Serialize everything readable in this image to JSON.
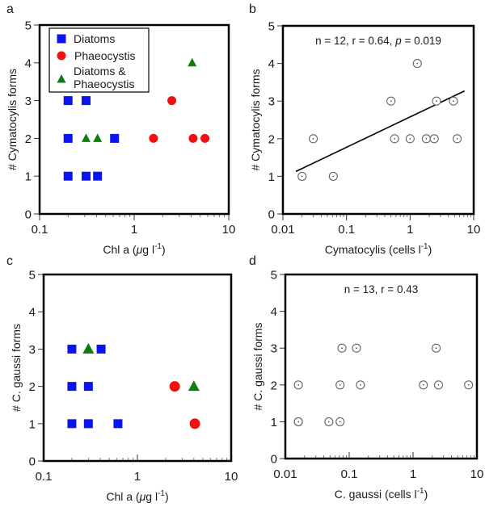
{
  "figure": {
    "colors": {
      "diatoms": "#0a14f0",
      "phaeocystis": "#f01010",
      "diatoms_phaeocystis": "#107c10",
      "open_marker": "#666666",
      "frame": "#000000"
    }
  },
  "chart_data": [
    {
      "id": "a",
      "panel_label": "a",
      "type": "scatter",
      "title": "",
      "xlabel": "Chl a (µg l⁻¹)",
      "xlabel_parts": {
        "pre": "Chl a (",
        "mu": "μ",
        "mid": "g l",
        "sup": "-1",
        "post": ")"
      },
      "ylabel": "# Cymatocylis forms",
      "xscale": "log",
      "xlim": [
        0.1,
        10
      ],
      "ylim": [
        0,
        5
      ],
      "xticks": [
        {
          "value": 0.1,
          "label": "0.1"
        },
        {
          "value": 1,
          "label": "1"
        },
        {
          "value": 10,
          "label": "10"
        }
      ],
      "yticks": [
        {
          "value": 0,
          "label": "0"
        },
        {
          "value": 1,
          "label": "1"
        },
        {
          "value": 2,
          "label": "2"
        },
        {
          "value": 3,
          "label": "3"
        },
        {
          "value": 4,
          "label": "4"
        },
        {
          "value": 5,
          "label": "5"
        }
      ],
      "legend": {
        "placement": "top-left",
        "entries": [
          {
            "series": "Diatoms",
            "marker": "square",
            "lines": [
              "Diatoms"
            ]
          },
          {
            "series": "Phaeocystis",
            "marker": "circle",
            "lines": [
              "Phaeocystis"
            ]
          },
          {
            "series": "Diatoms & Phaeocystis",
            "marker": "triangle",
            "lines": [
              "Diatoms &",
              "Phaeocystis"
            ]
          }
        ]
      },
      "series": [
        {
          "name": "Diatoms",
          "marker": "square",
          "color_key": "diatoms",
          "points": [
            [
              0.2,
              3
            ],
            [
              0.31,
              3
            ],
            [
              0.2,
              2
            ],
            [
              0.62,
              2
            ],
            [
              0.2,
              1
            ],
            [
              0.31,
              1
            ],
            [
              0.41,
              1
            ]
          ]
        },
        {
          "name": "Phaeocystis",
          "marker": "circle",
          "color_key": "phaeocystis",
          "points": [
            [
              2.5,
              3
            ],
            [
              1.6,
              2
            ],
            [
              4.2,
              2
            ],
            [
              5.6,
              2
            ]
          ]
        },
        {
          "name": "Diatoms & Phaeocystis",
          "marker": "triangle",
          "color_key": "diatoms_phaeocystis",
          "points": [
            [
              4.1,
              4
            ],
            [
              0.31,
              2
            ],
            [
              0.41,
              2
            ]
          ]
        }
      ]
    },
    {
      "id": "b",
      "panel_label": "b",
      "type": "scatter",
      "title": "",
      "annotation": {
        "pre": "n = 12, r = 0.64, ",
        "p_symbol": "p",
        "post": "= 0.019"
      },
      "xlabel": "Cymatocylis (cells l⁻¹)",
      "xlabel_parts": {
        "pre": "Cymatocylis (cells l",
        "sup": "-1",
        "post": ")"
      },
      "ylabel": "# Cymatocylis forms",
      "xscale": "log",
      "xlim": [
        0.01,
        10
      ],
      "ylim": [
        0,
        5
      ],
      "xticks": [
        {
          "value": 0.01,
          "label": "0.01"
        },
        {
          "value": 0.1,
          "label": "0.1"
        },
        {
          "value": 1,
          "label": "1"
        },
        {
          "value": 10,
          "label": "10"
        }
      ],
      "yticks": [
        {
          "value": 0,
          "label": "0"
        },
        {
          "value": 1,
          "label": "1"
        },
        {
          "value": 2,
          "label": "2"
        },
        {
          "value": 3,
          "label": "3"
        },
        {
          "value": 4,
          "label": "4"
        },
        {
          "value": 5,
          "label": "5"
        }
      ],
      "series": [
        {
          "name": "samples",
          "marker": "open-circle-dot",
          "color_key": "open_marker",
          "points": [
            [
              0.02,
              1
            ],
            [
              0.03,
              2
            ],
            [
              0.062,
              1
            ],
            [
              0.5,
              3
            ],
            [
              0.57,
              2
            ],
            [
              1.0,
              2
            ],
            [
              1.3,
              4
            ],
            [
              1.8,
              2
            ],
            [
              2.4,
              2
            ],
            [
              2.6,
              3
            ],
            [
              4.8,
              3
            ],
            [
              5.5,
              2
            ]
          ]
        }
      ],
      "fit_line": {
        "x": [
          0.016,
          7.2
        ],
        "y": [
          1.13,
          3.27
        ]
      }
    },
    {
      "id": "c",
      "panel_label": "c",
      "type": "scatter",
      "title": "",
      "xlabel": "Chl a (µg l⁻¹)",
      "xlabel_parts": {
        "pre": "Chl a (",
        "mu": "μ",
        "mid": "g l",
        "sup": "-1",
        "post": ")"
      },
      "ylabel": "# C. gaussi forms",
      "xscale": "log",
      "xlim": [
        0.1,
        10
      ],
      "ylim": [
        0,
        5
      ],
      "xticks": [
        {
          "value": 0.1,
          "label": "0.1"
        },
        {
          "value": 1,
          "label": "1"
        },
        {
          "value": 10,
          "label": "10"
        }
      ],
      "yticks": [
        {
          "value": 0,
          "label": "0"
        },
        {
          "value": 1,
          "label": "1"
        },
        {
          "value": 2,
          "label": "2"
        },
        {
          "value": 3,
          "label": "3"
        },
        {
          "value": 4,
          "label": "4"
        },
        {
          "value": 5,
          "label": "5"
        }
      ],
      "series": [
        {
          "name": "Diatoms",
          "marker": "square",
          "color_key": "diatoms",
          "points": [
            [
              0.2,
              3
            ],
            [
              0.41,
              3
            ],
            [
              0.2,
              2
            ],
            [
              0.3,
              2
            ],
            [
              0.2,
              1
            ],
            [
              0.3,
              1
            ],
            [
              0.62,
              1
            ]
          ]
        },
        {
          "name": "Phaeocystis",
          "marker": "circle-large",
          "color_key": "phaeocystis",
          "points": [
            [
              2.5,
              2
            ],
            [
              4.1,
              1
            ]
          ]
        },
        {
          "name": "Diatoms & Phaeocystis",
          "marker": "triangle-large",
          "color_key": "diatoms_phaeocystis",
          "points": [
            [
              0.3,
              3
            ],
            [
              4.0,
              2
            ]
          ]
        }
      ]
    },
    {
      "id": "d",
      "panel_label": "d",
      "type": "scatter",
      "title": "",
      "annotation": {
        "pre": "n = 13, r = 0.43",
        "p_symbol": "",
        "post": ""
      },
      "xlabel": "C. gaussi (cells l⁻¹)",
      "xlabel_parts": {
        "pre": "C. gaussi (cells l",
        "sup": "-1",
        "post": ")"
      },
      "ylabel": "# C. gaussi forms",
      "xscale": "log",
      "xlim": [
        0.01,
        10
      ],
      "ylim": [
        0,
        5
      ],
      "xticks": [
        {
          "value": 0.01,
          "label": "0.01"
        },
        {
          "value": 0.1,
          "label": "0.1"
        },
        {
          "value": 1,
          "label": "1"
        },
        {
          "value": 10,
          "label": "10"
        }
      ],
      "yticks": [
        {
          "value": 0,
          "label": "0"
        },
        {
          "value": 1,
          "label": "1"
        },
        {
          "value": 2,
          "label": "2"
        },
        {
          "value": 3,
          "label": "3"
        },
        {
          "value": 4,
          "label": "4"
        },
        {
          "value": 5,
          "label": "5"
        }
      ],
      "series": [
        {
          "name": "samples",
          "marker": "open-circle-dot",
          "color_key": "open_marker",
          "points": [
            [
              0.077,
              3
            ],
            [
              0.13,
              3
            ],
            [
              2.3,
              3
            ],
            [
              0.016,
              2
            ],
            [
              0.072,
              2
            ],
            [
              0.15,
              2
            ],
            [
              1.45,
              2
            ],
            [
              2.5,
              2
            ],
            [
              7.4,
              2
            ],
            [
              0.016,
              1
            ],
            [
              0.016,
              1
            ],
            [
              0.048,
              1
            ],
            [
              0.072,
              1
            ]
          ]
        }
      ]
    }
  ]
}
